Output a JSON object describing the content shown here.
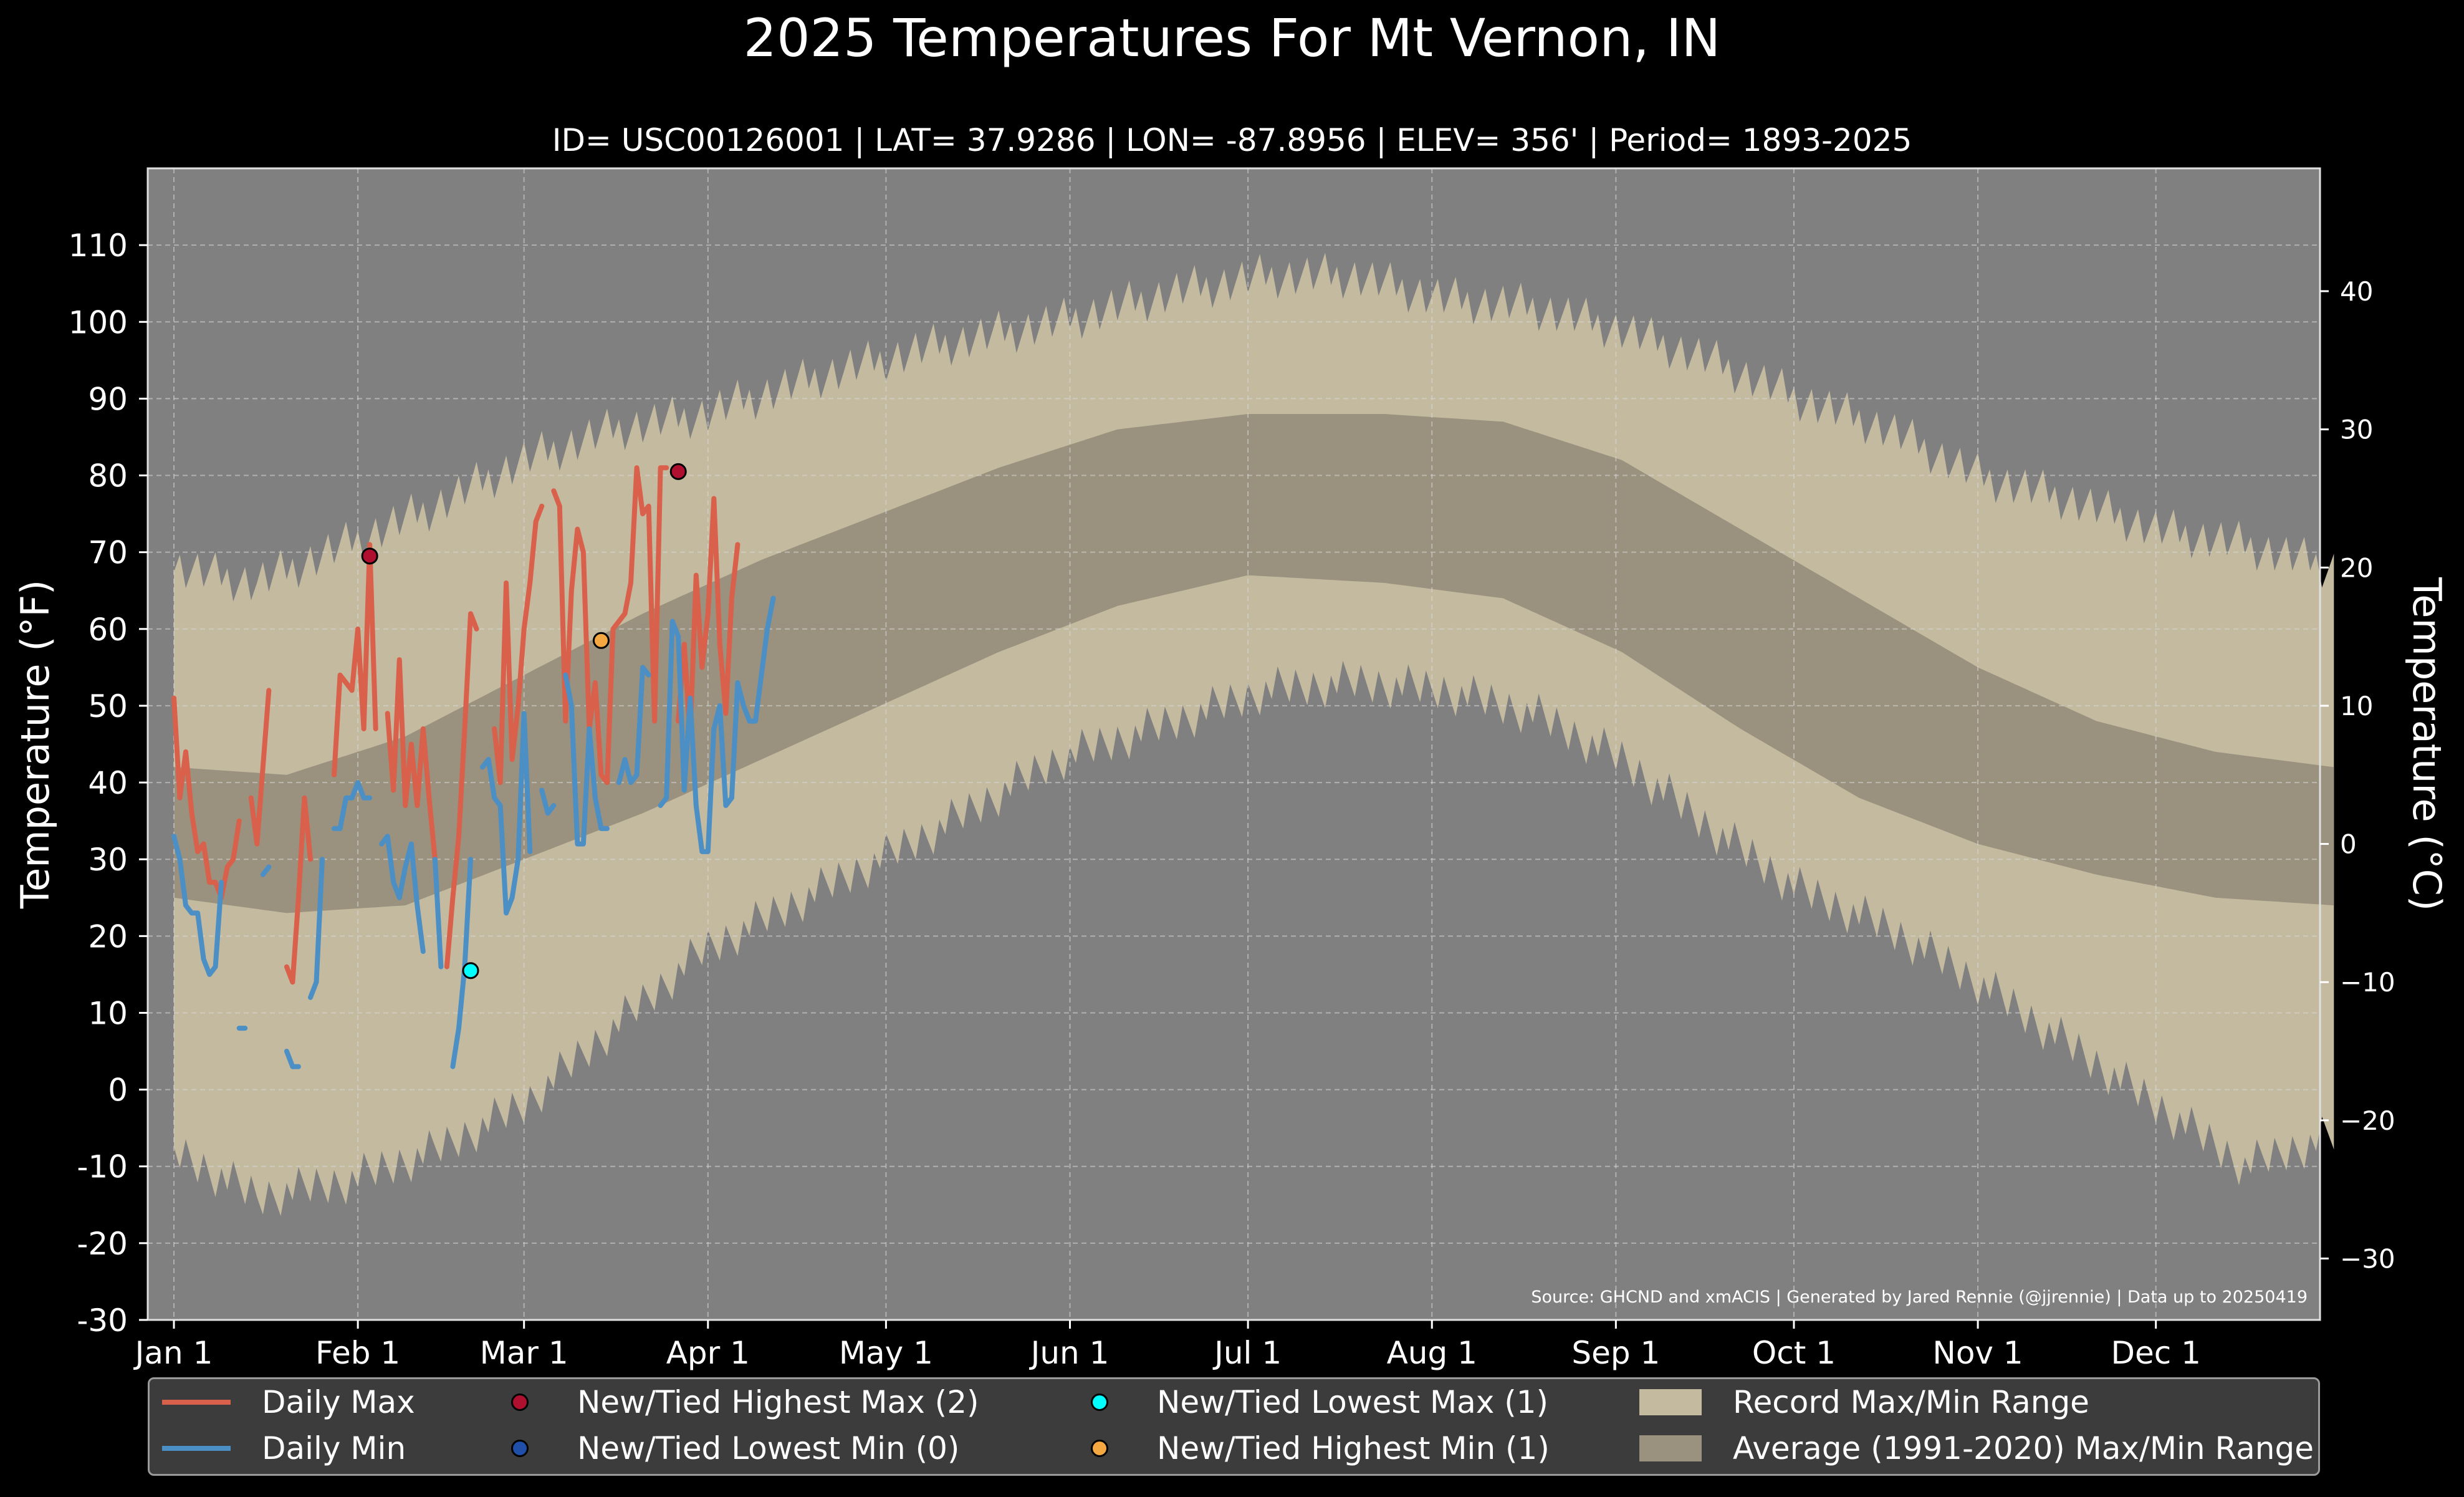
{
  "title": "2025 Temperatures For Mt Vernon, IN",
  "subtitle": "ID= USC00126001 | LAT= 37.9286 | LON= -87.8956 | ELEV= 356' | Period= 1893-2025",
  "source_note": "Source: GHCND and xmACIS | Generated by Jared Rennie (@jjrennie) | Data up to 20250419",
  "colors": {
    "background": "#000000",
    "plot_bg": "#808080",
    "record_range": "#c4baa0",
    "normal_range": "#9a917e",
    "daily_max": "#d9604a",
    "daily_min": "#4c8fc4",
    "new_high_max": "#b01030",
    "new_low_min": "#1f4fa8",
    "new_low_max": "#00ffff",
    "new_high_min": "#f5a742"
  },
  "legend": {
    "daily_max": "Daily Max",
    "daily_min": "Daily Min",
    "new_high_max": "New/Tied Highest Max (2)",
    "new_low_min": "New/Tied Lowest Min (0)",
    "new_low_max": "New/Tied Lowest Max (1)",
    "new_high_min": "New/Tied Highest Min (1)",
    "record_range": "Record Max/Min Range",
    "normal_range": "Average (1991-2020) Max/Min Range"
  },
  "chart_data": {
    "type": "line",
    "ylabel": "Temperature ($^\\circ$F)",
    "ylabel_right": "Temperature ($^\\circ$C)",
    "ylim": [
      -30,
      120
    ],
    "y_ticks": [
      "-30",
      "-20",
      "-10",
      "0",
      "10",
      "20",
      "30",
      "40",
      "50",
      "60",
      "70",
      "80",
      "90",
      "100",
      "110"
    ],
    "y2_ticks": [
      "−30",
      "−20",
      "−10",
      "0",
      "10",
      "20",
      "30",
      "40"
    ],
    "month_ticks": [
      "Jan 1",
      "Feb 1",
      "Mar 1",
      "Apr 1",
      "May 1",
      "Jun 1",
      "Jul 1",
      "Aug 1",
      "Sep 1",
      "Oct 1",
      "Nov 1",
      "Dec 1"
    ],
    "record_max_anchors": [
      [
        1,
        68
      ],
      [
        15,
        66
      ],
      [
        30,
        71
      ],
      [
        45,
        76
      ],
      [
        60,
        82
      ],
      [
        75,
        86
      ],
      [
        90,
        88
      ],
      [
        110,
        93
      ],
      [
        130,
        97
      ],
      [
        150,
        100
      ],
      [
        170,
        104
      ],
      [
        185,
        106
      ],
      [
        200,
        106
      ],
      [
        215,
        103
      ],
      [
        230,
        102
      ],
      [
        245,
        99
      ],
      [
        260,
        95
      ],
      [
        275,
        90
      ],
      [
        290,
        86
      ],
      [
        305,
        80
      ],
      [
        320,
        77
      ],
      [
        335,
        73
      ],
      [
        350,
        71
      ],
      [
        365,
        68
      ]
    ],
    "record_min_anchors": [
      [
        1,
        -8
      ],
      [
        15,
        -14
      ],
      [
        30,
        -12
      ],
      [
        45,
        -8
      ],
      [
        60,
        -2
      ],
      [
        75,
        8
      ],
      [
        90,
        18
      ],
      [
        110,
        26
      ],
      [
        130,
        34
      ],
      [
        150,
        43
      ],
      [
        170,
        48
      ],
      [
        185,
        52
      ],
      [
        200,
        53
      ],
      [
        215,
        52
      ],
      [
        230,
        49
      ],
      [
        245,
        43
      ],
      [
        260,
        34
      ],
      [
        275,
        26
      ],
      [
        290,
        21
      ],
      [
        305,
        14
      ],
      [
        320,
        6
      ],
      [
        335,
        -2
      ],
      [
        350,
        -10
      ],
      [
        365,
        -6
      ]
    ],
    "normal_max_anchors": [
      [
        1,
        42
      ],
      [
        20,
        41
      ],
      [
        40,
        46
      ],
      [
        60,
        54
      ],
      [
        80,
        62
      ],
      [
        100,
        69
      ],
      [
        120,
        75
      ],
      [
        140,
        81
      ],
      [
        160,
        86
      ],
      [
        182,
        88
      ],
      [
        205,
        88
      ],
      [
        225,
        87
      ],
      [
        245,
        82
      ],
      [
        265,
        73
      ],
      [
        285,
        64
      ],
      [
        305,
        55
      ],
      [
        325,
        48
      ],
      [
        345,
        44
      ],
      [
        365,
        42
      ]
    ],
    "normal_min_anchors": [
      [
        1,
        25
      ],
      [
        20,
        23
      ],
      [
        40,
        24
      ],
      [
        60,
        30
      ],
      [
        80,
        36
      ],
      [
        100,
        43
      ],
      [
        120,
        50
      ],
      [
        140,
        57
      ],
      [
        160,
        63
      ],
      [
        182,
        67
      ],
      [
        205,
        66
      ],
      [
        225,
        64
      ],
      [
        245,
        57
      ],
      [
        265,
        47
      ],
      [
        285,
        38
      ],
      [
        305,
        32
      ],
      [
        325,
        28
      ],
      [
        345,
        25
      ],
      [
        365,
        24
      ]
    ],
    "series": [
      {
        "name": "Daily Max",
        "x": [
          1,
          2,
          3,
          4,
          5,
          6,
          7,
          8,
          9,
          10,
          11,
          12,
          null,
          14,
          15,
          16,
          17,
          18,
          null,
          20,
          21,
          22,
          23,
          24,
          25,
          26,
          27,
          28,
          29,
          30,
          31,
          32,
          33,
          34,
          35,
          36,
          37,
          38,
          39,
          40,
          41,
          42,
          43,
          44,
          45,
          46,
          47,
          48,
          49,
          50,
          51,
          52,
          53,
          54,
          55,
          56,
          57,
          58,
          59,
          60,
          61,
          62,
          63,
          64,
          65,
          66,
          67,
          68,
          69,
          70,
          71,
          72,
          73,
          74,
          75,
          76,
          77,
          78,
          79,
          80,
          81,
          82,
          83,
          84,
          85,
          86,
          87,
          88,
          89,
          90,
          91,
          92,
          93,
          94,
          95,
          96,
          97,
          98,
          99,
          100,
          101,
          102,
          103,
          104,
          105,
          106,
          107,
          108,
          109
        ],
        "y": [
          51,
          38,
          44,
          36,
          31,
          32,
          27,
          27,
          25,
          29,
          30,
          35,
          null,
          38,
          32,
          42,
          52,
          null,
          25,
          16,
          14,
          25,
          38,
          30,
          null,
          null,
          null,
          41,
          54,
          53,
          52,
          60,
          47,
          71,
          47,
          null,
          49,
          39,
          56,
          37,
          45,
          37,
          47,
          38,
          30,
          null,
          16,
          25,
          33,
          47,
          62,
          60,
          null,
          null,
          47,
          40,
          66,
          43,
          50,
          60,
          66,
          74,
          76,
          null,
          78,
          76,
          48,
          65,
          73,
          70,
          47,
          53,
          41,
          40,
          60,
          61,
          62,
          66,
          81,
          75,
          76,
          48,
          81,
          81,
          null,
          48,
          58,
          46,
          67,
          55,
          62,
          77,
          58,
          49,
          64,
          71,
          null,
          null,
          null,
          null,
          null,
          null,
          null,
          null,
          null,
          null,
          null,
          null,
          null
        ]
      },
      {
        "name": "Daily Min",
        "x": [
          1,
          2,
          3,
          4,
          5,
          6,
          7,
          8,
          9,
          10,
          11,
          12,
          13,
          14,
          15,
          16,
          17,
          18,
          19,
          20,
          21,
          22,
          23,
          24,
          25,
          26,
          27,
          28,
          29,
          30,
          31,
          32,
          33,
          34,
          35,
          36,
          37,
          38,
          39,
          40,
          41,
          42,
          43,
          44,
          45,
          46,
          47,
          48,
          49,
          50,
          51,
          52,
          53,
          54,
          55,
          56,
          57,
          58,
          59,
          60,
          61,
          62,
          63,
          64,
          65,
          66,
          67,
          68,
          69,
          70,
          71,
          72,
          73,
          74,
          75,
          76,
          77,
          78,
          79,
          80,
          81,
          82,
          83,
          84,
          85,
          86,
          87,
          88,
          89,
          90,
          91,
          92,
          93,
          94,
          95,
          96,
          97,
          98,
          99,
          100,
          101,
          102,
          103,
          104,
          105,
          106,
          107,
          108
        ],
        "y": [
          33,
          30,
          24,
          23,
          23,
          17,
          15,
          16,
          27,
          null,
          null,
          8,
          8,
          null,
          null,
          28,
          29,
          null,
          null,
          5,
          3,
          3,
          null,
          12,
          14,
          30,
          null,
          34,
          34,
          38,
          38,
          40,
          38,
          38,
          null,
          32,
          33,
          27,
          25,
          29,
          32,
          24,
          18,
          null,
          30,
          16,
          null,
          3,
          8,
          16,
          30,
          null,
          42,
          43,
          38,
          37,
          23,
          25,
          30,
          49,
          31,
          null,
          39,
          36,
          37,
          null,
          54,
          50,
          32,
          32,
          47,
          38,
          34,
          34,
          null,
          40,
          43,
          40,
          41,
          55,
          54,
          null,
          37,
          38,
          61,
          59,
          39,
          51,
          37,
          31,
          31,
          47,
          50,
          37,
          38,
          53,
          50,
          48,
          48,
          54,
          60,
          64,
          null,
          null,
          null,
          null,
          null,
          null
        ]
      }
    ],
    "markers": [
      {
        "label": "New/Tied Highest Max",
        "x": 34,
        "y": 69.5
      },
      {
        "label": "New/Tied Highest Max",
        "x": 86,
        "y": 80.5
      },
      {
        "label": "New/Tied Lowest Max",
        "x": 51,
        "y": 15.5
      },
      {
        "label": "New/Tied Highest Min",
        "x": 73,
        "y": 58.5
      }
    ],
    "grid": true,
    "legend_position": "bottom"
  }
}
